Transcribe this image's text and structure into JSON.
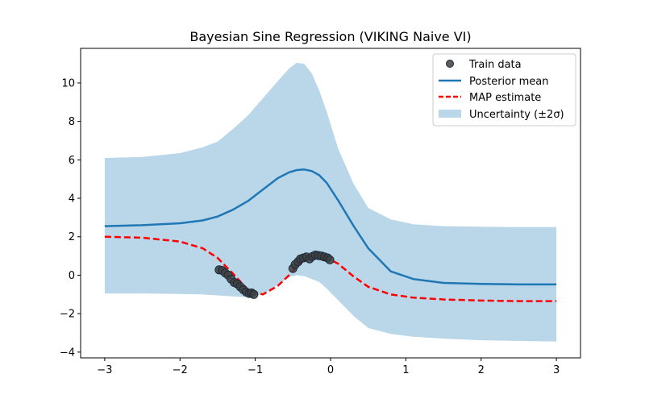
{
  "chart_data": {
    "type": "line",
    "title": "Bayesian Sine Regression (VIKING Naive VI)",
    "xlabel": "",
    "ylabel": "",
    "xlim": [
      -3.32,
      3.32
    ],
    "ylim": [
      -4.3,
      11.8
    ],
    "xticks": [
      -3,
      -2,
      -1,
      0,
      1,
      2,
      3
    ],
    "xtick_labels": [
      "−3",
      "−2",
      "−1",
      "0",
      "1",
      "2",
      "3"
    ],
    "yticks": [
      -4,
      -2,
      0,
      2,
      4,
      6,
      8,
      10
    ],
    "ytick_labels": [
      "−4",
      "−2",
      "0",
      "2",
      "4",
      "6",
      "8",
      "10"
    ],
    "legend_position": "top-right",
    "legend": [
      "Train data",
      "Posterior mean",
      "MAP estimate",
      "Uncertainty (±2σ)"
    ],
    "colors": {
      "posterior": "#1f77b4",
      "map": "#ff0000",
      "band": "#bad6e9",
      "points_fill": "#3f3f3f",
      "points_edge": "#1b2a3a"
    },
    "x": [
      -3.0,
      -2.5,
      -2.0,
      -1.7,
      -1.5,
      -1.3,
      -1.1,
      -0.9,
      -0.7,
      -0.55,
      -0.45,
      -0.35,
      -0.25,
      -0.15,
      -0.05,
      0.1,
      0.3,
      0.5,
      0.8,
      1.1,
      1.5,
      2.0,
      2.5,
      3.0
    ],
    "series": [
      {
        "name": "Posterior mean",
        "values": [
          2.55,
          2.6,
          2.7,
          2.85,
          3.05,
          3.4,
          3.85,
          4.45,
          5.05,
          5.35,
          5.47,
          5.5,
          5.42,
          5.2,
          4.8,
          3.9,
          2.6,
          1.4,
          0.2,
          -0.2,
          -0.4,
          -0.45,
          -0.48,
          -0.48
        ]
      },
      {
        "name": "MAP estimate",
        "values": [
          2.0,
          1.95,
          1.75,
          1.4,
          0.9,
          0.1,
          -0.75,
          -1.0,
          -0.55,
          0.0,
          0.45,
          0.8,
          0.95,
          0.98,
          0.9,
          0.6,
          -0.05,
          -0.6,
          -1.0,
          -1.17,
          -1.26,
          -1.32,
          -1.35,
          -1.35
        ]
      },
      {
        "name": "Uncertainty upper (+2σ)",
        "values": [
          6.1,
          6.15,
          6.35,
          6.65,
          6.95,
          7.6,
          8.3,
          9.2,
          10.1,
          10.75,
          11.05,
          11.0,
          10.5,
          9.6,
          8.5,
          6.6,
          4.8,
          3.5,
          2.9,
          2.65,
          2.55,
          2.52,
          2.5,
          2.5
        ]
      },
      {
        "name": "Uncertainty lower (−2σ)",
        "values": [
          -0.95,
          -0.95,
          -0.98,
          -1.0,
          -1.05,
          -1.1,
          -1.15,
          -1.0,
          -0.5,
          -0.1,
          0.0,
          -0.05,
          -0.2,
          -0.35,
          -0.7,
          -1.3,
          -2.1,
          -2.75,
          -3.05,
          -3.2,
          -3.3,
          -3.38,
          -3.42,
          -3.45
        ]
      }
    ],
    "train_data": {
      "x": [
        -1.48,
        -1.44,
        -1.4,
        -1.36,
        -1.32,
        -1.28,
        -1.24,
        -1.2,
        -1.16,
        -1.12,
        -1.08,
        -1.05,
        -1.02,
        -0.5,
        -0.47,
        -0.43,
        -0.4,
        -0.36,
        -0.32,
        -0.28,
        -0.24,
        -0.2,
        -0.16,
        -0.12,
        -0.08,
        -0.04,
        -0.01
      ],
      "y": [
        0.28,
        0.25,
        0.12,
        0.0,
        -0.2,
        -0.38,
        -0.45,
        -0.6,
        -0.75,
        -0.88,
        -0.95,
        -0.92,
        -1.0,
        0.35,
        0.55,
        0.7,
        0.85,
        0.9,
        0.95,
        0.85,
        0.98,
        1.05,
        1.02,
        1.0,
        0.95,
        0.9,
        0.8
      ]
    }
  }
}
